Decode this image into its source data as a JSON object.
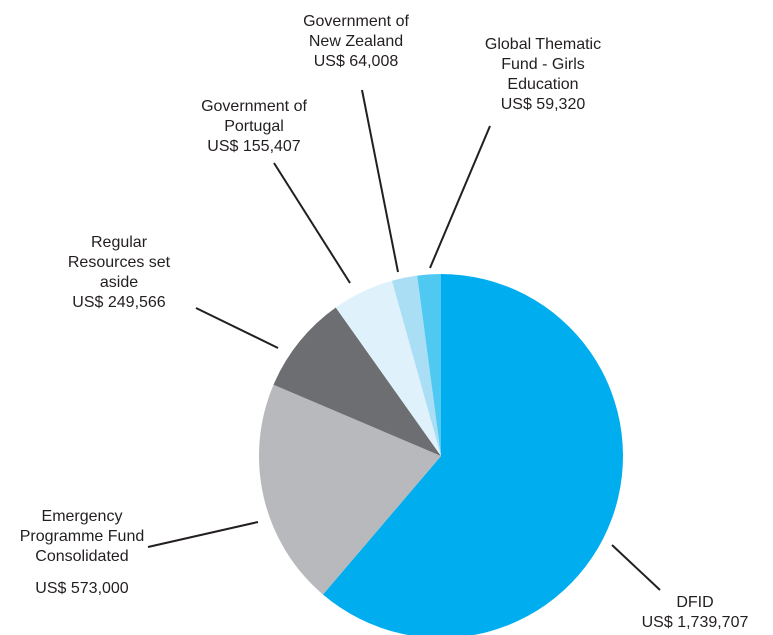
{
  "chart_data": {
    "type": "pie",
    "categories": [
      "DFID",
      "Emergency Programme Fund Consolidated",
      "Regular Resources set aside",
      "Government of Portugal",
      "Government of New Zealand",
      "Global Thematic Fund - Girls Education"
    ],
    "values": [
      1739707,
      573000,
      249566,
      155407,
      64008,
      59320
    ],
    "value_labels": [
      "US$ 1,739,707",
      "US$ 573,000",
      "US$ 249,566",
      "US$ 155,407",
      "US$ 64,008",
      "US$ 59,320"
    ],
    "colors": [
      "#00aeef",
      "#b7b9bc",
      "#6d6e71",
      "#dff1fb",
      "#a9def5",
      "#4fc9f2"
    ]
  }
}
